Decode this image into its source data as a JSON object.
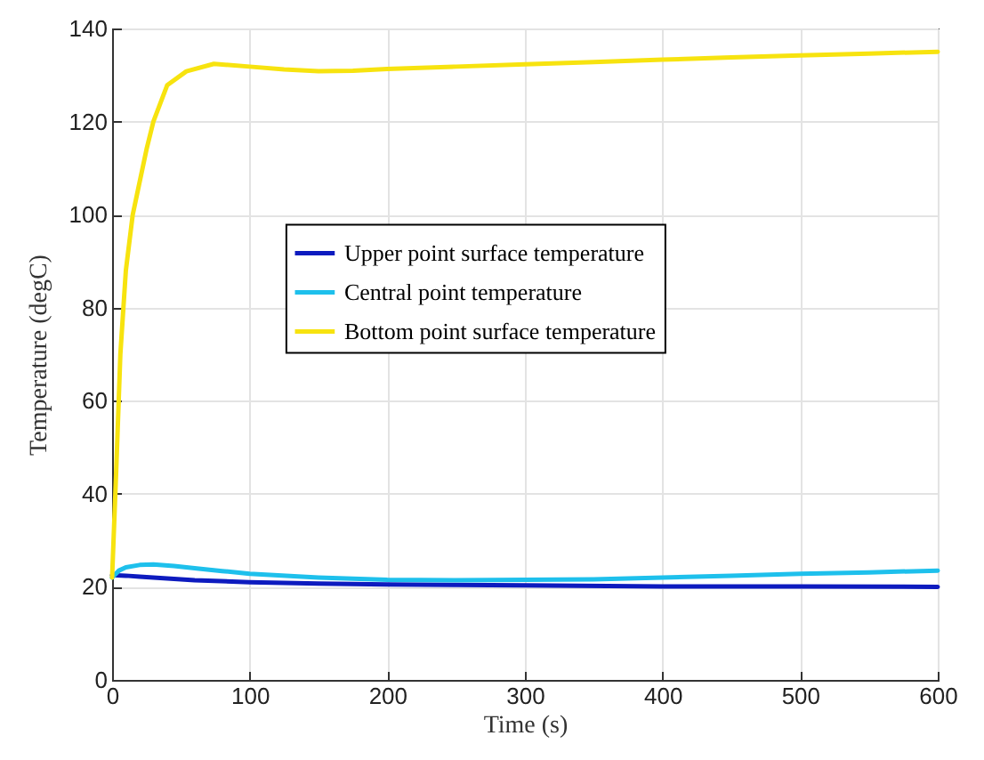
{
  "chart_data": {
    "type": "line",
    "xlabel": "Time (s)",
    "ylabel": "Temperature (degC)",
    "xlim": [
      0,
      600
    ],
    "ylim": [
      0,
      140
    ],
    "xticks": [
      0,
      100,
      200,
      300,
      400,
      500,
      600
    ],
    "yticks": [
      0,
      20,
      40,
      60,
      80,
      100,
      120,
      140
    ],
    "grid": true,
    "legend": "center",
    "line_style": "solid",
    "marker": "none",
    "series": [
      {
        "name": "Upper point surface temperature",
        "color": "#0d1bbf",
        "x": [
          0,
          10,
          20,
          40,
          60,
          100,
          150,
          200,
          250,
          300,
          400,
          500,
          600
        ],
        "values": [
          22.5,
          22.4,
          22.2,
          21.8,
          21.4,
          21,
          20.7,
          20.5,
          20.4,
          20.3,
          20.1,
          20.1,
          20
        ]
      },
      {
        "name": "Central point temperature",
        "color": "#1ec0ec",
        "x": [
          0,
          5,
          10,
          20,
          30,
          45,
          60,
          80,
          100,
          150,
          200,
          250,
          300,
          350,
          400,
          450,
          500,
          550,
          600
        ],
        "values": [
          22,
          23.5,
          24.2,
          24.7,
          24.8,
          24.5,
          24,
          23.4,
          22.8,
          22,
          21.5,
          21.4,
          21.5,
          21.6,
          22,
          22.4,
          22.8,
          23.1,
          23.5
        ]
      },
      {
        "name": "Bottom point surface temperature",
        "color": "#f7e30f",
        "x": [
          0,
          3,
          6,
          10,
          15,
          19,
          25,
          30,
          40,
          54,
          74,
          100,
          125,
          150,
          175,
          200,
          250,
          300,
          350,
          400,
          450,
          500,
          550,
          600
        ],
        "values": [
          22,
          45,
          70,
          88,
          100,
          105.6,
          114,
          120,
          127.8,
          130.8,
          132.4,
          131.8,
          131.2,
          130.8,
          130.9,
          131.3,
          131.8,
          132.3,
          132.8,
          133.3,
          133.8,
          134.2,
          134.6,
          135
        ]
      }
    ]
  }
}
